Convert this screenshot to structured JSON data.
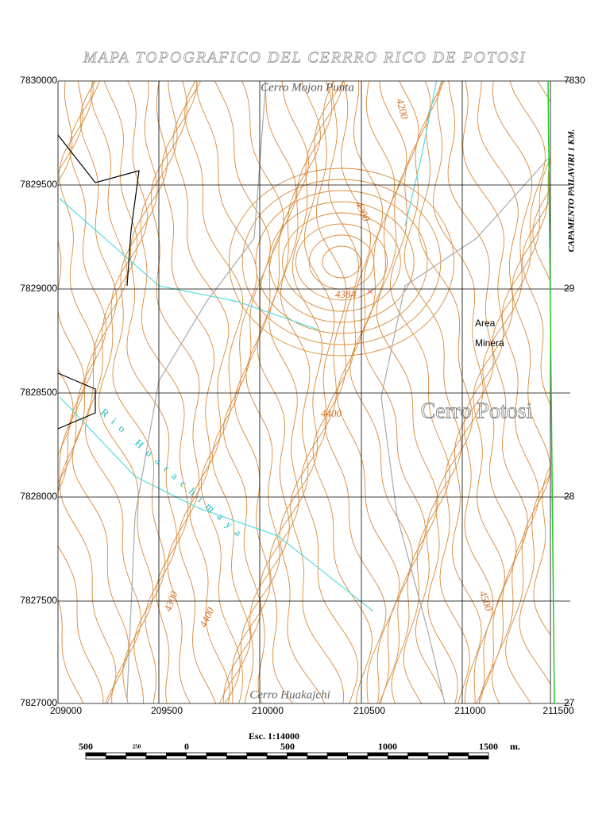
{
  "title": "MAPA TOPOGRAFICO DEL CERRRO RICO DE POTOSI",
  "grid": {
    "left_labels": [
      "7830000",
      "7829500",
      "7829000",
      "7828500",
      "7828000",
      "7827500",
      "7827000"
    ],
    "right_labels": [
      "7830",
      "29",
      "28",
      "27"
    ],
    "bottom_labels": [
      "209000",
      "209500",
      "210000",
      "210500",
      "211000",
      "211500"
    ]
  },
  "places": {
    "north": "Cerro Mojon Punta",
    "peak": "Cerro Potosi",
    "south": "Cerro Huakajchi",
    "area_line1": "Area",
    "area_line2": "Minera"
  },
  "contour_labels": [
    "4200",
    "4300",
    "4384",
    "4400",
    "4500",
    "4300",
    "4400"
  ],
  "stream_label": "Rio Huarachimaya",
  "side_note": "CAPAMENTO PAILAVIRI 1 KM.",
  "scale": {
    "title": "Esc. 1:14000",
    "labels": [
      "500",
      "250",
      "0",
      "500",
      "1000",
      "1500"
    ],
    "unit": "m."
  }
}
